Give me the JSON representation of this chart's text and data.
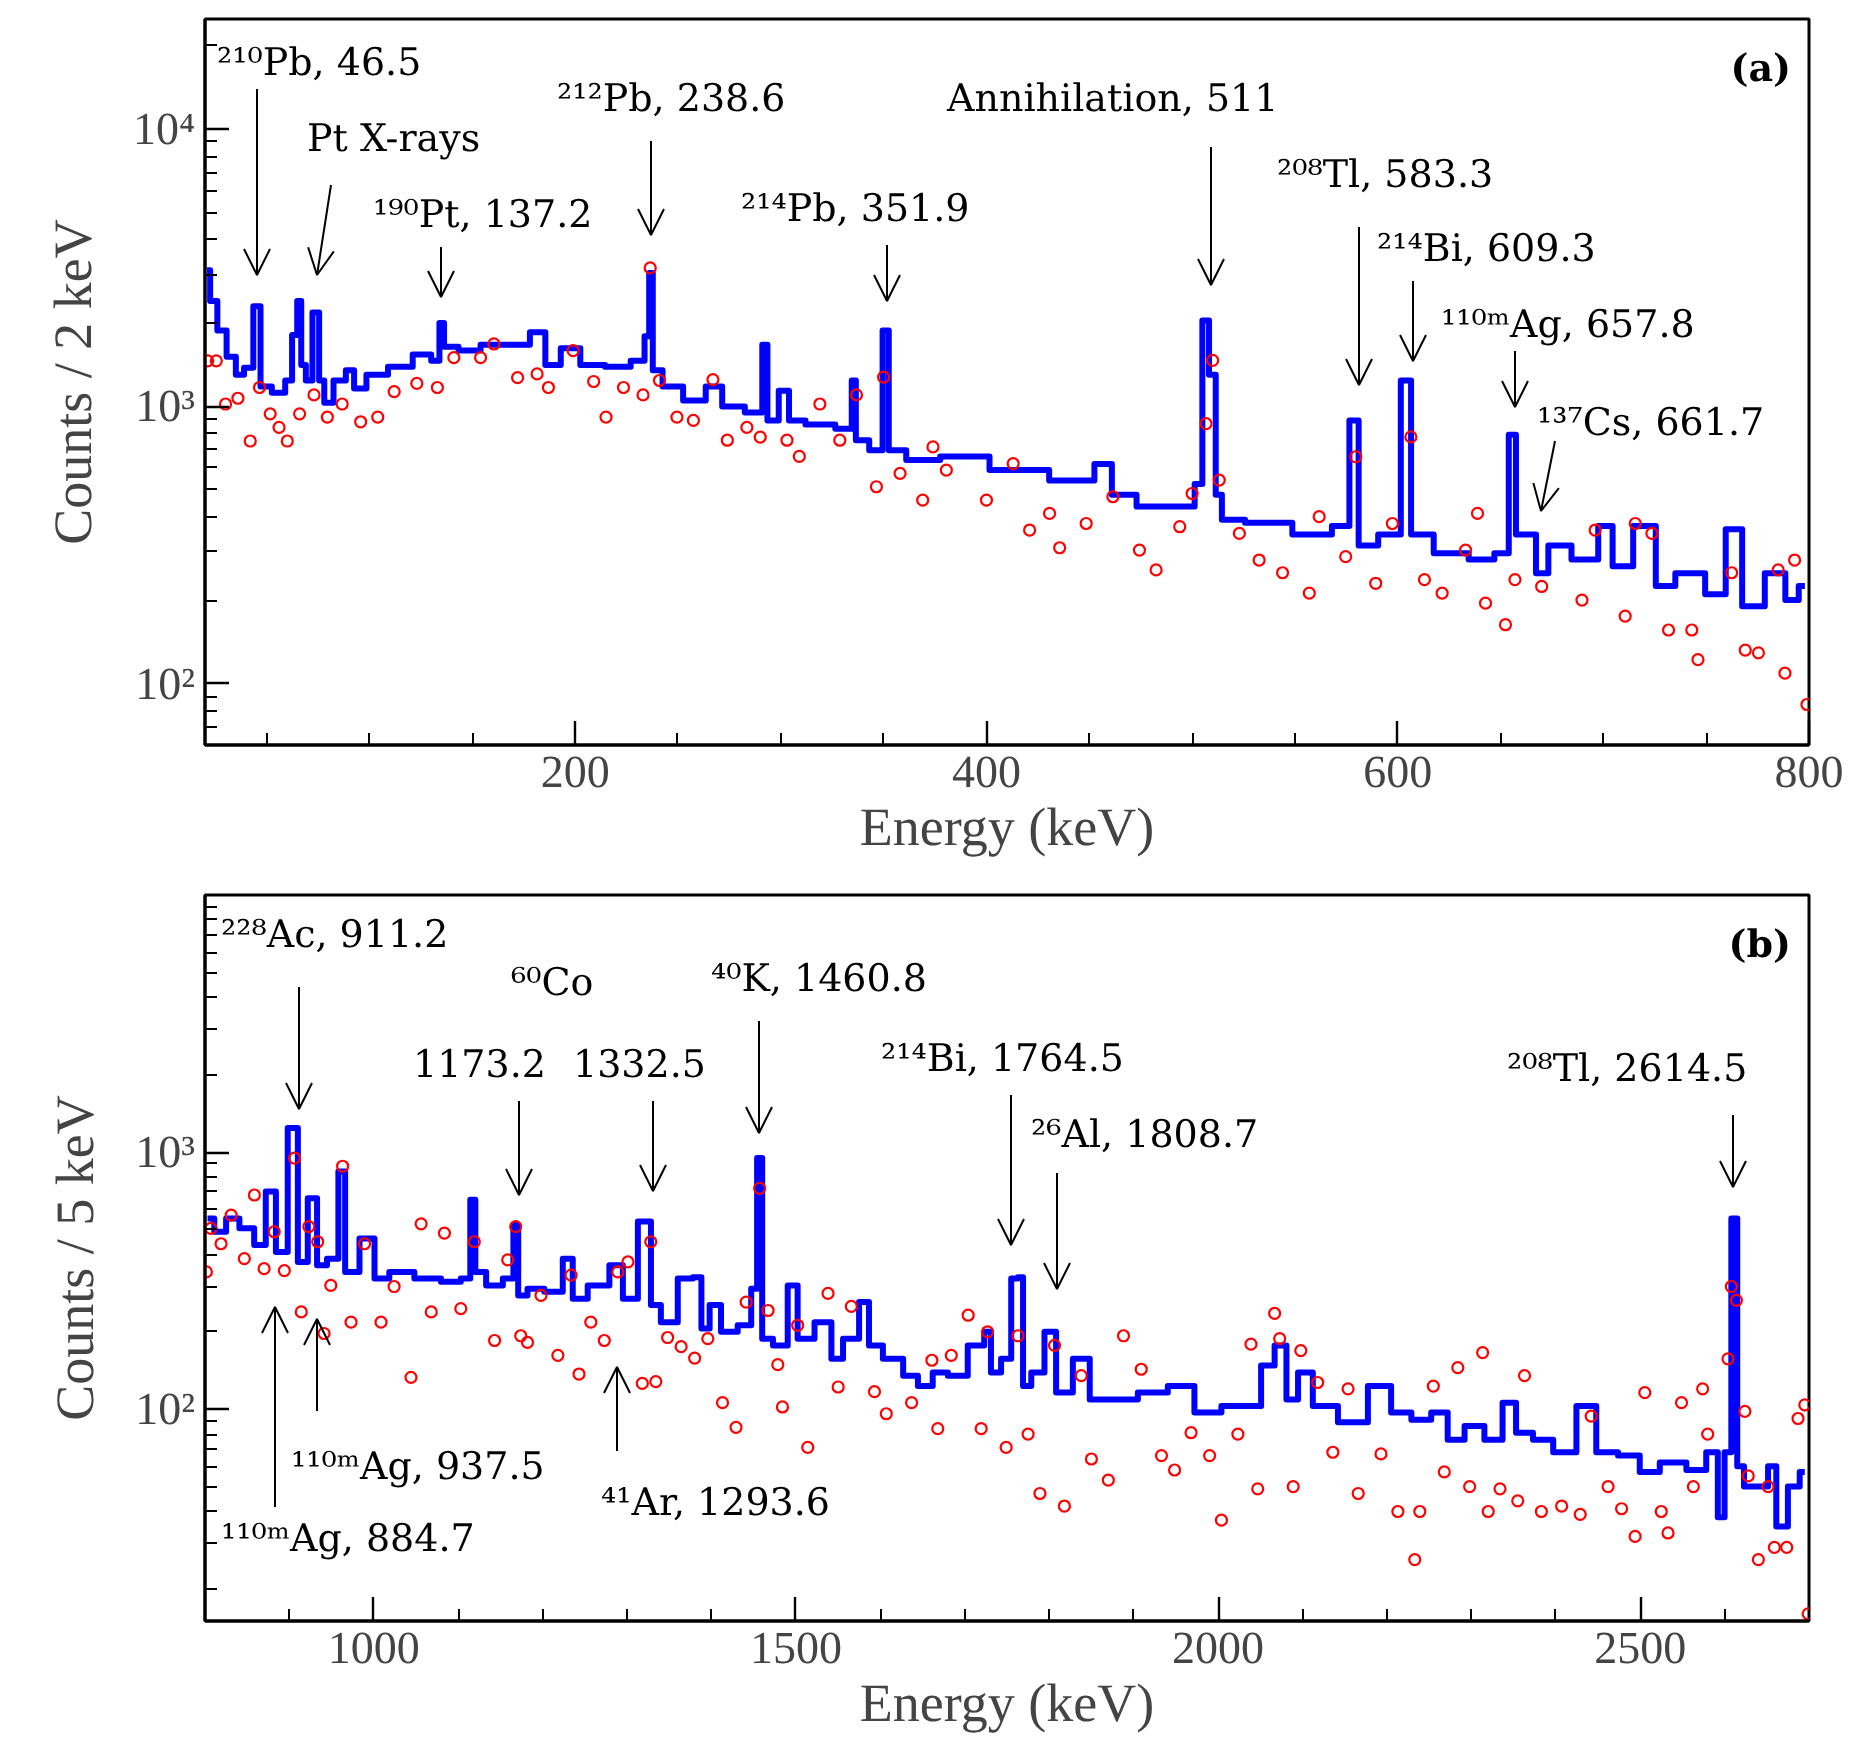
{
  "chart_data": [
    {
      "type": "step",
      "xlabel": "Energy (keV)",
      "ylabel": "Counts / 2 keV",
      "log": "y",
      "xlim": [
        20,
        800
      ],
      "ylim": [
        60,
        25000
      ],
      "xticks": [
        {
          "value": 50,
          "label": null
        },
        {
          "value": 100,
          "label": null
        },
        {
          "value": 150,
          "label": null
        },
        200,
        {
          "value": 250,
          "label": null
        },
        {
          "value": 300,
          "label": null
        },
        {
          "value": 350,
          "label": null
        },
        400,
        {
          "value": 450,
          "label": null
        },
        {
          "value": 500,
          "label": null
        },
        {
          "value": 550,
          "label": null
        },
        600,
        {
          "value": 650,
          "label": null
        },
        {
          "value": 700,
          "label": null
        },
        {
          "value": 750,
          "label": null
        },
        800
      ],
      "yticks": [
        {
          "value": 70,
          "label": null
        },
        {
          "value": 80,
          "label": null
        },
        {
          "value": 90,
          "label": null
        },
        {
          "value": 100,
          "label": "10²"
        },
        {
          "value": 200,
          "label": null
        },
        {
          "value": 300,
          "label": null
        },
        {
          "value": 400,
          "label": null
        },
        {
          "value": 500,
          "label": null
        },
        {
          "value": 600,
          "label": null
        },
        {
          "value": 700,
          "label": null
        },
        {
          "value": 800,
          "label": null
        },
        {
          "value": 900,
          "label": null
        },
        {
          "value": 1000,
          "label": "10³"
        },
        {
          "value": 2000,
          "label": null
        },
        {
          "value": 3000,
          "label": null
        },
        {
          "value": 4000,
          "label": null
        },
        {
          "value": 5000,
          "label": null
        },
        {
          "value": 6000,
          "label": null
        },
        {
          "value": 7000,
          "label": null
        },
        {
          "value": 8000,
          "label": null
        },
        {
          "value": 9000,
          "label": null
        },
        {
          "value": 10000,
          "label": "10⁴"
        },
        {
          "value": 20000,
          "label": null
        }
      ],
      "series": [
        {
          "color": "#0000ff",
          "x": [
            21,
            24,
            28,
            33,
            37,
            41,
            46,
            48,
            57,
            61,
            63.7,
            66,
            67.6,
            70.5,
            74,
            77,
            79,
            86,
            91,
            94,
            103,
            115,
            127,
            133,
            135,
            137.5,
            149,
            159,
            173,
            183,
            188,
            198,
            207,
            222,
            232,
            235.5,
            236.5,
            239,
            246,
            259,
            268,
            275,
            290,
            292,
            295,
            303,
            305,
            319,
            334,
            335,
            338,
            348,
            351,
            354,
            368,
            387,
            416,
            445,
            460,
            462,
            484,
            499,
            503.5,
            506.5,
            510,
            513,
            516,
            535.5,
            562,
            574,
            579,
            583,
            598,
            605,
            608,
            627,
            642,
            652,
            656,
            659,
            666,
            668.5,
            678,
            691,
            704,
            705,
            724,
            727,
            743,
            756,
            763,
            772,
            785,
            792,
            798
          ],
          "values": [
            3100,
            2400,
            1880,
            1510,
            1300,
            1380,
            2300,
            1180,
            1120,
            1240,
            1810,
            2400,
            1410,
            1240,
            2180,
            1240,
            1030,
            1240,
            1350,
            1160,
            1300,
            1390,
            1540,
            1460,
            2000,
            1640,
            1590,
            1670,
            1670,
            1850,
            1410,
            1620,
            1410,
            1390,
            1460,
            1790,
            3030,
            1350,
            1180,
            1050,
            1180,
            1000,
            950,
            1670,
            890,
            1140,
            890,
            860,
            830,
            1240,
            755,
            695,
            1880,
            695,
            640,
            660,
            590,
            540,
            620,
            480,
            435,
            435,
            525,
            2040,
            1300,
            480,
            390,
            380,
            345,
            370,
            890,
            315,
            345,
            1240,
            345,
            295,
            280,
            295,
            790,
            345,
            345,
            250,
            315,
            280,
            370,
            265,
            370,
            225,
            250,
            210,
            360,
            190,
            250,
            200,
            225
          ]
        },
        {
          "type": "scatter",
          "color": "#ff0000",
          "marker": "circle",
          "x": [
            21.3,
            25.5,
            30,
            36,
            42,
            46.5,
            51.7,
            56,
            60,
            66,
            73,
            79.5,
            86.7,
            95.7,
            104,
            112,
            123,
            133,
            141,
            154,
            160.5,
            172,
            181.5,
            187,
            199,
            209,
            215,
            223.5,
            233,
            236.5,
            241,
            249.5,
            257.5,
            267,
            274,
            283.5,
            290,
            303,
            309,
            319,
            328.7,
            336.8,
            346.5,
            350,
            358,
            369,
            374,
            380.5,
            400,
            413,
            421,
            430.7,
            435.6,
            448.5,
            461.5,
            474.4,
            482.5,
            494,
            500,
            506.8,
            510,
            513.2,
            523,
            532.6,
            544,
            557,
            561.8,
            574.7,
            579.6,
            589.3,
            597.4,
            606.4,
            613,
            621.6,
            633,
            638.8,
            642.7,
            652.4,
            657,
            670,
            689.6,
            696,
            710.6,
            715.5,
            723.6,
            731.7,
            743,
            746,
            762.4,
            769,
            775.4,
            785,
            788.3,
            793,
            799
          ],
          "values": [
            1460,
            1460,
            1020,
            1070,
            750,
            1170,
            940,
            840,
            750,
            940,
            1100,
            915,
            1020,
            880,
            915,
            1130,
            1210,
            1170,
            1500,
            1500,
            1680,
            1270,
            1310,
            1170,
            1590,
            1230,
            915,
            1170,
            1100,
            3160,
            1240,
            915,
            890,
            1250,
            755,
            840,
            775,
            755,
            660,
            1020,
            755,
            1100,
            513,
            1275,
            573,
            459,
            714,
            589,
            459,
            622,
            358,
            411,
            309,
            378,
            472,
            303,
            257,
            368,
            485,
            867,
            1465,
            542,
            348,
            279,
            251,
            212,
            400,
            287,
            658,
            230,
            378,
            776,
            237,
            212,
            303,
            411,
            195,
            163,
            237,
            224,
            200,
            358,
            175,
            378,
            348,
            156,
            156,
            122,
            251,
            132,
            129,
            257,
            109,
            279,
            84
          ]
        }
      ],
      "annotations": [
        "²¹⁰Pb, 46.5",
        "Pt X-rays",
        "¹⁹⁰Pt, 137.2",
        "²¹²Pb, 238.6",
        "²¹⁴Pb, 351.9",
        "Annihilation, 511",
        "²⁰⁸Tl, 583.3",
        "²¹⁴Bi, 609.3",
        "¹¹⁰ᵐAg, 657.8",
        "¹³⁷Cs, 661.7",
        "(a)"
      ]
    },
    {
      "type": "step",
      "xlabel": "Energy (keV)",
      "ylabel": "Counts / 5 keV",
      "log": "y",
      "xlim": [
        800,
        2700
      ],
      "ylim": [
        15,
        10000
      ],
      "xticks": [
        {
          "value": 900,
          "label": null
        },
        1000,
        {
          "value": 1100,
          "label": null
        },
        {
          "value": 1200,
          "label": null
        },
        {
          "value": 1300,
          "label": null
        },
        {
          "value": 1400,
          "label": null
        },
        1500,
        {
          "value": 1600,
          "label": null
        },
        {
          "value": 1700,
          "label": null
        },
        {
          "value": 1800,
          "label": null
        },
        {
          "value": 1900,
          "label": null
        },
        2000,
        {
          "value": 2100,
          "label": null
        },
        {
          "value": 2200,
          "label": null
        },
        {
          "value": 2300,
          "label": null
        },
        {
          "value": 2400,
          "label": null
        },
        2500,
        {
          "value": 2600,
          "label": null
        }
      ],
      "yticks": [
        {
          "value": 20,
          "label": null
        },
        {
          "value": 30,
          "label": null
        },
        {
          "value": 40,
          "label": null
        },
        {
          "value": 50,
          "label": null
        },
        {
          "value": 60,
          "label": null
        },
        {
          "value": 70,
          "label": null
        },
        {
          "value": 80,
          "label": null
        },
        {
          "value": 90,
          "label": null
        },
        {
          "value": 100,
          "label": "10²"
        },
        {
          "value": 200,
          "label": null
        },
        {
          "value": 300,
          "label": null
        },
        {
          "value": 400,
          "label": null
        },
        {
          "value": 500,
          "label": null
        },
        {
          "value": 600,
          "label": null
        },
        {
          "value": 700,
          "label": null
        },
        {
          "value": 800,
          "label": null
        },
        {
          "value": 900,
          "label": null
        },
        {
          "value": 1000,
          "label": "10³"
        },
        {
          "value": 2000,
          "label": null
        },
        {
          "value": 3000,
          "label": null
        },
        {
          "value": 4000,
          "label": null
        },
        {
          "value": 5000,
          "label": null
        },
        {
          "value": 6000,
          "label": null
        },
        {
          "value": 7000,
          "label": null
        },
        {
          "value": 8000,
          "label": null
        },
        {
          "value": 9000,
          "label": null
        }
      ],
      "series": [
        {
          "color": "#0000ff",
          "x": [
            803,
            819,
            831,
            850.5,
            866,
            878,
            890,
            906,
            914,
            929.5,
            936,
            953,
            963,
            969,
            997,
            1004.6,
            1032,
            1064,
            1095,
            1111,
            1117.5,
            1123,
            1143,
            1162.6,
            1168,
            1174,
            1190,
            1214,
            1233.6,
            1237.6,
            1269,
            1289,
            1301,
            1324.5,
            1332,
            1348,
            1372,
            1384,
            1392,
            1403.5,
            1419,
            1443,
            1451,
            1457,
            1463,
            1482.5,
            1498,
            1506,
            1538,
            1546,
            1565.6,
            1584,
            1589,
            1617,
            1637,
            1652,
            1672,
            1688,
            1719,
            1727,
            1735,
            1751,
            1759,
            1767,
            1771,
            1786.5,
            1802.3,
            1814,
            1842,
            1854,
            1885,
            1925,
            1956,
            1988,
            2020,
            2043,
            2059,
            2075,
            2087,
            2102.5,
            2122,
            2162,
            2193,
            2217,
            2241,
            2264,
            2280,
            2304,
            2327,
            2347,
            2359,
            2387,
            2407,
            2442,
            2454,
            2493.5,
            2505.5,
            2541,
            2568.5,
            2588,
            2596,
            2604,
            2612,
            2618,
            2628,
            2647.5,
            2655.5,
            2667,
            2683,
            2695
          ],
          "values": [
            552,
            490,
            552,
            505,
            435,
            702,
            409,
            1240,
            374,
            661,
            363,
            385,
            840,
            342,
            461,
            322,
            342,
            322,
            313,
            322,
            653,
            342,
            303,
            322,
            520,
            277,
            294,
            286,
            385,
            269,
            303,
            363,
            269,
            537,
            254,
            218,
            322,
            326,
            206,
            254,
            200,
            212,
            294,
            948,
            188,
            177,
            303,
            188,
            218,
            157,
            188,
            261,
            177,
            157,
            135,
            123,
            139,
            135,
            177,
            200,
            139,
            157,
            322,
            326,
            123,
            139,
            200,
            116,
            157,
            109,
            109,
            116,
            123,
            97,
            103,
            103,
            148,
            177,
            109,
            139,
            103,
            89,
            123,
            97,
            91,
            97,
            76,
            86,
            76,
            106,
            81,
            76,
            68,
            103,
            68,
            66,
            57,
            62,
            58,
            68,
            38,
            68,
            552,
            60,
            50,
            50,
            60,
            35,
            50,
            57
          ]
        },
        {
          "type": "scatter",
          "color": "#ff0000",
          "marker": "circle",
          "x": [
            801.6,
            807,
            819,
            831,
            846.6,
            858.5,
            870,
            882,
            894,
            906,
            914,
            923,
            933.5,
            941,
            949,
            963,
            973,
            989,
            1008.5,
            1024,
            1044,
            1056,
            1068,
            1083.6,
            1103,
            1119,
            1143,
            1158.6,
            1168,
            1174,
            1182,
            1198,
            1218,
            1233.6,
            1243,
            1257,
            1273,
            1289,
            1301,
            1318,
            1328,
            1334,
            1348,
            1364,
            1380,
            1395.6,
            1413,
            1429,
            1441,
            1457,
            1467,
            1478.5,
            1484,
            1502,
            1514,
            1538,
            1550,
            1565.6,
            1593,
            1607,
            1637,
            1661,
            1668,
            1684,
            1704,
            1719.4,
            1727,
            1749,
            1763,
            1775,
            1789,
            1806.3,
            1818,
            1838,
            1850,
            1870,
            1888,
            1909,
            1933,
            1948.5,
            1968,
            1990,
            2004,
            2023.5,
            2039,
            2047,
            2067,
            2073,
            2089,
            2098,
            2118,
            2136,
            2154,
            2166,
            2193,
            2213,
            2233,
            2239,
            2255,
            2268,
            2284,
            2298,
            2313.4,
            2320,
            2334,
            2355,
            2363,
            2383,
            2407,
            2429,
            2442,
            2462,
            2478,
            2494,
            2505.5,
            2525,
            2533,
            2549,
            2563,
            2574,
            2580,
            2604,
            2608,
            2614,
            2624,
            2628,
            2640,
            2651.5,
            2659,
            2673.6,
            2687,
            2695,
            2699
          ],
          "values": [
            342,
            505,
            440,
            569,
            385,
            681,
            352,
            490,
            346,
            948,
            239,
            513,
            448,
            197,
            303,
            881,
            218,
            440,
            218,
            300,
            133,
            526,
            239,
            484,
            246,
            448,
            185,
            381,
            513,
            193,
            182,
            277,
            162,
            332,
            137,
            218,
            185,
            342,
            374,
            126,
            448,
            128,
            190,
            175,
            158,
            188,
            106,
            85,
            261,
            723,
            242,
            149,
            102,
            212,
            71,
            282,
            122,
            251,
            117,
            96,
            106,
            155,
            84,
            162,
            232,
            84,
            200,
            71,
            193,
            80,
            47,
            177,
            42,
            135,
            64,
            53,
            193,
            143,
            66,
            58,
            81,
            66,
            37,
            80,
            179,
            49,
            236,
            188,
            50,
            169,
            127,
            68,
            120,
            47,
            67,
            40,
            26,
            40,
            123,
            57,
            145,
            50,
            166,
            40,
            49,
            44,
            135,
            40,
            42,
            39,
            94,
            50,
            41,
            32,
            116,
            40,
            33,
            106,
            50,
            120,
            80,
            157,
            300,
            265,
            98,
            55,
            26,
            50,
            29,
            29,
            92,
            104,
            16
          ]
        }
      ],
      "annotations": [
        "²²⁸Ac, 911.2",
        "⁶⁰Co",
        "1173.2",
        "1332.5",
        "⁴⁰K, 1460.8",
        "²¹⁴Bi, 1764.5",
        "²⁶Al, 1808.7",
        "²⁰⁸Tl, 2614.5",
        "¹¹⁰ᵐAg, 884.7",
        "¹¹⁰ᵐAg, 937.5",
        "⁴¹Ar, 1293.6",
        "(b)"
      ]
    }
  ]
}
